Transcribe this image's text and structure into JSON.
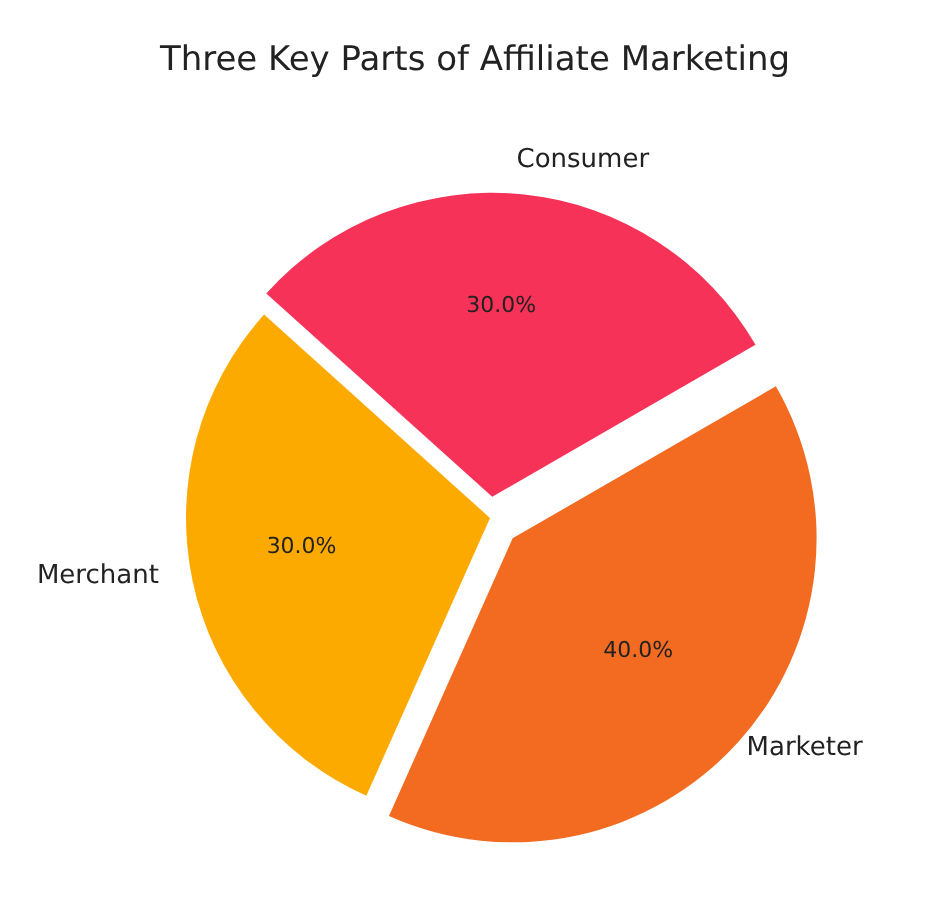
{
  "chart_data": {
    "type": "pie",
    "title": "Three Key Parts of Affiliate Marketing",
    "categories": [
      "Consumer",
      "Merchant",
      "Marketer"
    ],
    "values": [
      30,
      30,
      40
    ],
    "colors": [
      "#f73258",
      "#fdaa00",
      "#f26b21"
    ],
    "value_labels": [
      "30.0%",
      "30.0%",
      "40.0%"
    ]
  }
}
